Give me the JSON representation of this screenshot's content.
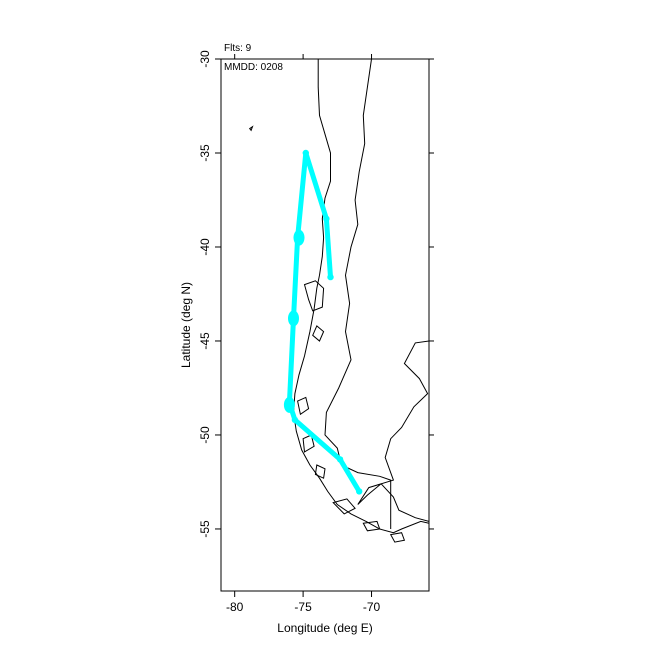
{
  "annotations": {
    "flights": "Flts: 9",
    "date": "MMDD: 0208"
  },
  "chart_data": {
    "type": "line",
    "xlabel": "Longitude (deg E)",
    "ylabel": "Latitude (deg N)",
    "xlim": [
      -81,
      -65.8
    ],
    "ylim": [
      -58.3,
      -30
    ],
    "x_ticks": [
      -80,
      -75,
      -70
    ],
    "x_tick_labels": [
      "-80",
      "-75",
      "-70"
    ],
    "y_ticks": [
      -30,
      -35,
      -40,
      -45,
      -50,
      -55
    ],
    "y_tick_labels": [
      "-30",
      "-35",
      "-40",
      "-45",
      "-50",
      "-55"
    ],
    "grid": false,
    "track_color": "#00ffff",
    "coast_color": "#000000",
    "series": [
      {
        "points": [
          [
            -73.0,
            -41.6
          ],
          [
            -73.3,
            -38.5
          ],
          [
            -74.8,
            -35.0
          ],
          [
            -75.4,
            -39.5
          ],
          [
            -75.7,
            -43.8
          ],
          [
            -76.0,
            -48.3
          ],
          [
            -75.6,
            -49.2
          ],
          [
            -72.3,
            -51.3
          ],
          [
            -70.9,
            -53.0
          ]
        ]
      }
    ],
    "dwell_points": [
      {
        "lon": -75.3,
        "lat": -39.5
      },
      {
        "lon": -75.7,
        "lat": -43.8
      },
      {
        "lon": -76.0,
        "lat": -48.4
      }
    ],
    "coastline": [
      [
        -73.9,
        -30.0
      ],
      [
        -73.9,
        -31.5
      ],
      [
        -73.8,
        -33.0
      ],
      [
        -73.4,
        -34.0
      ],
      [
        -73.0,
        -35.0
      ],
      [
        -73.0,
        -36.5
      ],
      [
        -73.4,
        -37.4
      ],
      [
        -73.6,
        -38.5
      ],
      [
        -73.5,
        -39.5
      ],
      [
        -73.6,
        -40.5
      ],
      [
        -73.8,
        -41.5
      ],
      [
        -74.0,
        -42.2
      ],
      [
        -74.2,
        -43.3
      ],
      [
        -74.5,
        -44.5
      ],
      [
        -74.9,
        -45.8
      ],
      [
        -75.3,
        -46.8
      ],
      [
        -75.6,
        -47.8
      ],
      [
        -75.7,
        -48.8
      ],
      [
        -75.5,
        -49.8
      ],
      [
        -75.1,
        -50.8
      ],
      [
        -74.5,
        -51.6
      ],
      [
        -73.8,
        -52.3
      ],
      [
        -73.2,
        -53.0
      ],
      [
        -72.5,
        -53.7
      ],
      [
        -71.5,
        -54.2
      ],
      [
        -70.4,
        -54.6
      ],
      [
        -69.4,
        -55.0
      ],
      [
        -68.4,
        -55.2
      ],
      [
        -67.8,
        -55.0
      ],
      [
        -66.4,
        -54.6
      ],
      [
        -65.8,
        -54.7
      ]
    ],
    "andes_border": [
      [
        -70.0,
        -30.0
      ],
      [
        -70.3,
        -31.5
      ],
      [
        -70.6,
        -33.0
      ],
      [
        -70.5,
        -34.5
      ],
      [
        -70.9,
        -36.0
      ],
      [
        -71.2,
        -37.5
      ],
      [
        -71.0,
        -38.8
      ],
      [
        -71.5,
        -40.0
      ],
      [
        -71.9,
        -41.5
      ],
      [
        -71.6,
        -43.0
      ],
      [
        -71.9,
        -44.5
      ],
      [
        -71.5,
        -46.0
      ],
      [
        -72.4,
        -47.5
      ],
      [
        -73.3,
        -48.8
      ],
      [
        -73.4,
        -50.0
      ],
      [
        -72.5,
        -50.7
      ],
      [
        -72.2,
        -51.6
      ],
      [
        -71.0,
        -52.0
      ],
      [
        -69.4,
        -52.2
      ],
      [
        -68.6,
        -52.4
      ],
      [
        -68.6,
        -55.0
      ]
    ],
    "atlantic_coast": [
      [
        -65.8,
        -45.0
      ],
      [
        -66.8,
        -45.1
      ],
      [
        -67.6,
        -46.2
      ],
      [
        -66.5,
        -47.0
      ],
      [
        -65.9,
        -47.8
      ],
      [
        -66.9,
        -48.5
      ],
      [
        -67.8,
        -49.6
      ],
      [
        -68.6,
        -50.2
      ],
      [
        -69.0,
        -51.2
      ],
      [
        -68.4,
        -52.4
      ],
      [
        -70.2,
        -52.8
      ],
      [
        -71.0,
        -53.7
      ],
      [
        -70.3,
        -53.2
      ],
      [
        -69.3,
        -52.6
      ],
      [
        -68.4,
        -53.3
      ],
      [
        -68.0,
        -54.0
      ],
      [
        -66.8,
        -54.4
      ],
      [
        -65.8,
        -54.6
      ]
    ],
    "islands": [
      [
        [
          -74.9,
          -42.0
        ],
        [
          -74.1,
          -41.8
        ],
        [
          -73.5,
          -42.2
        ],
        [
          -73.6,
          -43.2
        ],
        [
          -74.3,
          -43.4
        ],
        [
          -74.6,
          -42.8
        ],
        [
          -74.9,
          -42.0
        ]
      ],
      [
        [
          -74.0,
          -44.2
        ],
        [
          -73.5,
          -44.5
        ],
        [
          -73.8,
          -45.0
        ],
        [
          -74.3,
          -44.7
        ],
        [
          -74.0,
          -44.2
        ]
      ],
      [
        [
          -75.4,
          -48.2
        ],
        [
          -74.8,
          -48.0
        ],
        [
          -74.6,
          -48.6
        ],
        [
          -75.2,
          -48.9
        ],
        [
          -75.4,
          -48.2
        ]
      ],
      [
        [
          -75.0,
          -50.2
        ],
        [
          -74.4,
          -50.0
        ],
        [
          -74.2,
          -50.6
        ],
        [
          -74.9,
          -50.9
        ],
        [
          -75.0,
          -50.2
        ]
      ],
      [
        [
          -74.0,
          -51.6
        ],
        [
          -73.4,
          -51.8
        ],
        [
          -73.5,
          -52.3
        ],
        [
          -74.1,
          -52.1
        ],
        [
          -74.0,
          -51.6
        ]
      ],
      [
        [
          -72.8,
          -53.6
        ],
        [
          -71.8,
          -53.4
        ],
        [
          -71.2,
          -53.9
        ],
        [
          -72.0,
          -54.2
        ],
        [
          -72.8,
          -53.6
        ]
      ],
      [
        [
          -70.6,
          -54.7
        ],
        [
          -69.6,
          -54.6
        ],
        [
          -69.4,
          -55.0
        ],
        [
          -70.3,
          -55.1
        ],
        [
          -70.6,
          -54.7
        ]
      ],
      [
        [
          -68.6,
          -55.3
        ],
        [
          -67.8,
          -55.2
        ],
        [
          -67.6,
          -55.6
        ],
        [
          -68.3,
          -55.7
        ],
        [
          -68.6,
          -55.3
        ]
      ],
      [
        [
          -78.9,
          -33.7
        ],
        [
          -78.7,
          -33.6
        ],
        [
          -78.8,
          -33.8
        ],
        [
          -78.9,
          -33.7
        ]
      ]
    ]
  }
}
